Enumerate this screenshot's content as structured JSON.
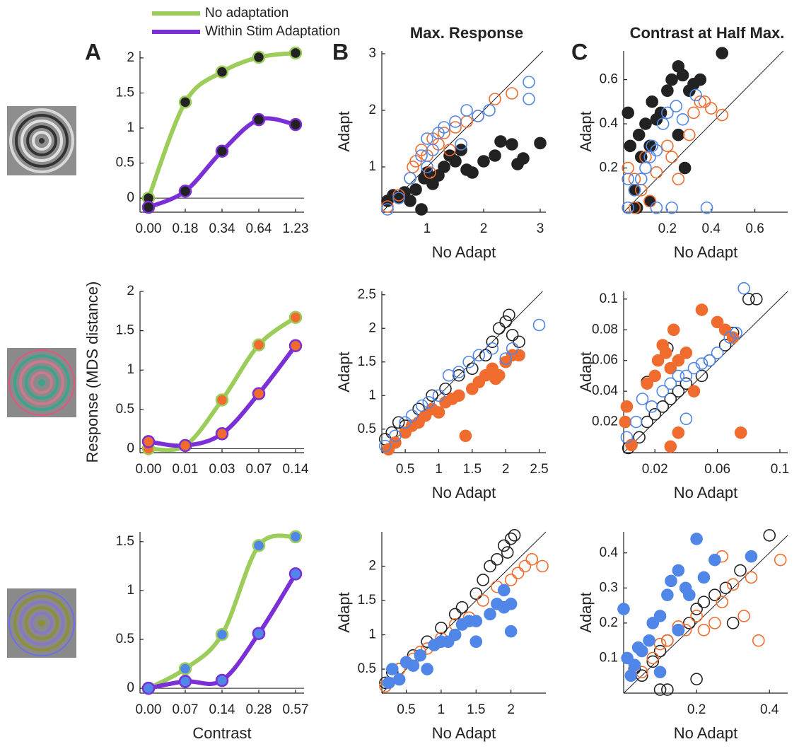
{
  "figure": {
    "panel_labels": [
      "A",
      "B",
      "C"
    ],
    "column_titles": [
      "Max. Response",
      "Contrast at Half Max."
    ]
  },
  "chart_data": [
    {
      "type": "line",
      "categories": [
        "0.00",
        "0.18",
        "0.34",
        "0.64",
        "1.23"
      ],
      "ylim": [
        -0.2,
        2.1
      ],
      "yticks": [
        0,
        0.5,
        1,
        1.5,
        2
      ],
      "marker_color": "#222222",
      "series": [
        {
          "name": "No adaptation",
          "color": "#9ccc5a",
          "values": [
            0,
            1.37,
            1.8,
            2.01,
            2.07
          ]
        },
        {
          "name": "Within Stim Adaptation",
          "color": "#7b2fd6",
          "values": [
            -0.13,
            0.1,
            0.67,
            1.12,
            1.05
          ]
        }
      ]
    },
    {
      "type": "line",
      "categories": [
        "0.00",
        "0.01",
        "0.03",
        "0.07",
        "0.14"
      ],
      "ylim": [
        -0.05,
        2
      ],
      "yticks": [
        0,
        0.5,
        1,
        1.5,
        2
      ],
      "marker_color": "#ef6c2e",
      "ylabel": "Response (MDS distance)",
      "series": [
        {
          "color": "#9ccc5a",
          "values": [
            0,
            0.04,
            0.62,
            1.32,
            1.67
          ]
        },
        {
          "color": "#7b2fd6",
          "values": [
            0.09,
            0.04,
            0.19,
            0.7,
            1.31
          ]
        }
      ]
    },
    {
      "type": "line",
      "categories": [
        "0.00",
        "0.07",
        "0.14",
        "0.28",
        "0.57"
      ],
      "ylim": [
        -0.05,
        1.6
      ],
      "yticks": [
        0,
        0.5,
        1,
        1.5
      ],
      "marker_color": "#4f86e8",
      "xlabel": "Contrast",
      "series": [
        {
          "color": "#9ccc5a",
          "values": [
            0,
            0.2,
            0.55,
            1.46,
            1.55
          ]
        },
        {
          "color": "#7b2fd6",
          "values": [
            0,
            0.07,
            0.08,
            0.56,
            1.17
          ]
        }
      ]
    },
    {
      "type": "scatter",
      "xlabel": "No Adapt",
      "ylabel": "Adapt",
      "xlim": [
        0.2,
        3.1
      ],
      "ylim": [
        0.2,
        3.05
      ],
      "xticks": [
        1,
        2,
        3
      ],
      "yticks": [
        1,
        2,
        3
      ],
      "identity_line": true,
      "series": [
        {
          "color": "#222222",
          "filled": true,
          "x": [
            0.3,
            0.4,
            0.5,
            0.6,
            0.7,
            0.8,
            0.9,
            0.95,
            1.0,
            1.1,
            1.2,
            1.3,
            1.4,
            1.5,
            1.6,
            1.7,
            1.8,
            2.0,
            2.2,
            2.3,
            2.5,
            2.6,
            2.7,
            3.0
          ],
          "values": [
            0.4,
            0.5,
            0.45,
            0.55,
            0.4,
            0.6,
            0.25,
            0.8,
            0.9,
            0.7,
            0.85,
            1.0,
            1.2,
            1.1,
            1.3,
            0.95,
            0.9,
            1.1,
            1.2,
            1.45,
            1.4,
            1.05,
            1.15,
            1.42
          ]
        },
        {
          "color": "#ef6c2e",
          "filled": false,
          "x": [
            0.3,
            0.5,
            0.7,
            0.8,
            0.9,
            1.0,
            1.1,
            1.2,
            1.3,
            1.4,
            1.5,
            1.7,
            1.9,
            2.2,
            2.5,
            0.75,
            1.05
          ],
          "values": [
            0.3,
            0.5,
            0.8,
            1.1,
            1.3,
            1.2,
            1.5,
            1.4,
            1.6,
            1.3,
            1.7,
            1.8,
            1.9,
            2.2,
            2.3,
            1.0,
            0.9
          ]
        },
        {
          "color": "#4f86e8",
          "filled": false,
          "x": [
            0.3,
            0.5,
            0.7,
            0.9,
            1.0,
            1.1,
            1.2,
            1.3,
            1.5,
            1.6,
            1.7,
            1.9,
            2.1,
            2.8,
            2.8,
            1.0
          ],
          "values": [
            0.25,
            0.45,
            0.8,
            1.2,
            1.5,
            1.3,
            1.6,
            1.7,
            1.8,
            1.4,
            2.0,
            1.9,
            2.0,
            2.5,
            2.2,
            1.0
          ]
        }
      ]
    },
    {
      "type": "scatter",
      "xlabel": "No Adapt",
      "ylabel": "Adapt",
      "xlim": [
        0,
        0.75
      ],
      "ylim": [
        0,
        0.73
      ],
      "xticks": [
        0.2,
        0.4,
        0.6
      ],
      "yticks": [
        0.2,
        0.4,
        0.6
      ],
      "identity_line": true,
      "series": [
        {
          "color": "#222222",
          "filled": true,
          "x": [
            0.02,
            0.03,
            0.05,
            0.07,
            0.08,
            0.1,
            0.12,
            0.13,
            0.15,
            0.17,
            0.2,
            0.22,
            0.25,
            0.27,
            0.3,
            0.32,
            0.35,
            0.45,
            0.12,
            0.28,
            0.25,
            0.06
          ],
          "values": [
            0.45,
            0.3,
            0.1,
            0.35,
            0.25,
            0.4,
            0.3,
            0.5,
            0.42,
            0.45,
            0.55,
            0.6,
            0.66,
            0.62,
            0.55,
            0.58,
            0.6,
            0.72,
            0.05,
            0.2,
            0.35,
            0.02
          ]
        },
        {
          "color": "#ef6c2e",
          "filled": false,
          "x": [
            0.02,
            0.05,
            0.08,
            0.1,
            0.12,
            0.15,
            0.2,
            0.22,
            0.25,
            0.3,
            0.32,
            0.37,
            0.4,
            0.45,
            0.35,
            0.05
          ],
          "values": [
            0.2,
            0.15,
            0.1,
            0.25,
            0.05,
            0.18,
            0.3,
            0.25,
            0.15,
            0.35,
            0.45,
            0.5,
            0.47,
            0.44,
            0.5,
            0.02
          ]
        },
        {
          "color": "#4f86e8",
          "filled": false,
          "x": [
            0.02,
            0.05,
            0.08,
            0.1,
            0.12,
            0.13,
            0.15,
            0.18,
            0.2,
            0.24,
            0.27,
            0.33,
            0.38,
            0.15,
            0.02,
            0.22
          ],
          "values": [
            0.02,
            0.1,
            0.15,
            0.2,
            0.25,
            0.3,
            0.28,
            0.4,
            0.45,
            0.48,
            0.42,
            0.53,
            0.02,
            0.02,
            0.15,
            0.02
          ]
        }
      ]
    },
    {
      "type": "scatter",
      "xlabel": "No Adapt",
      "ylabel": "Adapt",
      "xlim": [
        0.15,
        2.6
      ],
      "ylim": [
        0.15,
        2.55
      ],
      "xticks": [
        0.5,
        1,
        1.5,
        2,
        2.5
      ],
      "yticks": [
        0.5,
        1,
        1.5,
        2,
        2.5
      ],
      "identity_line": true,
      "series": [
        {
          "color": "#222222",
          "filled": false,
          "x": [
            0.2,
            0.3,
            0.4,
            0.5,
            0.7,
            0.9,
            1.1,
            1.3,
            1.5,
            1.7,
            1.8,
            1.9,
            2.0,
            2.05,
            2.1,
            2.2
          ],
          "values": [
            0.35,
            0.45,
            0.6,
            0.55,
            0.8,
            1.0,
            1.1,
            1.3,
            1.4,
            1.6,
            1.8,
            2.0,
            2.1,
            2.2,
            1.9,
            1.8
          ]
        },
        {
          "color": "#ef6c2e",
          "filled": true,
          "x": [
            0.25,
            0.35,
            0.5,
            0.6,
            0.7,
            0.8,
            0.9,
            1.0,
            1.1,
            1.2,
            1.3,
            1.4,
            1.5,
            1.6,
            1.7,
            1.8,
            1.9,
            2.0,
            2.1,
            2.2,
            1.85
          ],
          "values": [
            0.2,
            0.3,
            0.45,
            0.55,
            0.6,
            0.7,
            0.8,
            0.75,
            0.9,
            0.95,
            1.0,
            0.4,
            1.1,
            1.2,
            1.3,
            1.4,
            1.3,
            1.5,
            1.6,
            1.6,
            1.25
          ]
        },
        {
          "color": "#4f86e8",
          "filled": false,
          "x": [
            0.2,
            0.35,
            0.5,
            0.6,
            0.75,
            0.85,
            1.0,
            1.15,
            1.3,
            1.45,
            1.6,
            1.8,
            2.0,
            2.1,
            2.5
          ],
          "values": [
            0.25,
            0.4,
            0.6,
            0.7,
            0.85,
            0.9,
            1.0,
            1.3,
            1.35,
            1.5,
            1.6,
            1.7,
            1.55,
            1.7,
            2.05
          ]
        }
      ]
    },
    {
      "type": "scatter",
      "xlabel": "No Adapt",
      "ylabel": "Adapt",
      "xlim": [
        0,
        0.105
      ],
      "ylim": [
        0,
        0.105
      ],
      "xticks": [
        0.02,
        0.06,
        0.1
      ],
      "yticks": [
        0.02,
        0.04,
        0.06,
        0.08,
        0.1
      ],
      "identity_line": true,
      "series": [
        {
          "color": "#222222",
          "filled": false,
          "x": [
            0.003,
            0.01,
            0.015,
            0.02,
            0.025,
            0.03,
            0.035,
            0.04,
            0.05,
            0.055,
            0.065,
            0.07,
            0.08,
            0.085,
            0.028,
            0.015
          ],
          "values": [
            0.003,
            0.01,
            0.02,
            0.025,
            0.03,
            0.035,
            0.04,
            0.045,
            0.05,
            0.06,
            0.07,
            0.078,
            0.1,
            0.1,
            0.068,
            0.046
          ]
        },
        {
          "color": "#ef6c2e",
          "filled": true,
          "x": [
            0.001,
            0.002,
            0.005,
            0.015,
            0.02,
            0.022,
            0.025,
            0.027,
            0.03,
            0.032,
            0.035,
            0.04,
            0.045,
            0.05,
            0.06,
            0.065,
            0.07,
            0.075,
            0.035,
            0.03
          ],
          "values": [
            0.02,
            0.03,
            0.005,
            0.045,
            0.05,
            0.06,
            0.07,
            0.065,
            0.055,
            0.08,
            0.06,
            0.065,
            0.04,
            0.093,
            0.085,
            0.08,
            0.075,
            0.013,
            0.013,
            0.004
          ]
        },
        {
          "color": "#4f86e8",
          "filled": false,
          "x": [
            0.002,
            0.008,
            0.012,
            0.018,
            0.025,
            0.03,
            0.035,
            0.04,
            0.045,
            0.05,
            0.055,
            0.06,
            0.068,
            0.072,
            0.077,
            0.04
          ],
          "values": [
            0.01,
            0.02,
            0.035,
            0.03,
            0.04,
            0.045,
            0.05,
            0.05,
            0.055,
            0.058,
            0.06,
            0.065,
            0.075,
            0.078,
            0.107,
            0.022
          ]
        }
      ]
    },
    {
      "type": "scatter",
      "xlabel": "No Adapt",
      "ylabel": "Adapt",
      "xlim": [
        0.15,
        2.5
      ],
      "ylim": [
        0.15,
        2.5
      ],
      "xticks": [
        0.5,
        1,
        1.5,
        2
      ],
      "yticks": [
        0.5,
        1,
        1.5,
        2
      ],
      "identity_line": true,
      "series": [
        {
          "color": "#222222",
          "filled": false,
          "x": [
            0.2,
            0.3,
            0.4,
            0.6,
            0.8,
            1.0,
            1.2,
            1.3,
            1.5,
            1.6,
            1.7,
            1.8,
            1.9,
            2.0,
            2.05,
            1.95
          ],
          "values": [
            0.3,
            0.45,
            0.5,
            0.7,
            0.9,
            1.1,
            1.3,
            1.4,
            1.6,
            1.8,
            2.0,
            2.1,
            2.3,
            2.4,
            2.45,
            2.2
          ]
        },
        {
          "color": "#ef6c2e",
          "filled": false,
          "x": [
            0.2,
            0.4,
            0.6,
            0.7,
            0.8,
            1.0,
            1.2,
            1.4,
            1.6,
            1.8,
            2.0,
            2.1,
            2.2,
            2.3,
            2.45
          ],
          "values": [
            0.25,
            0.5,
            0.65,
            0.75,
            0.8,
            0.95,
            1.15,
            1.25,
            1.5,
            1.7,
            1.8,
            1.9,
            2.0,
            2.1,
            2.0
          ]
        },
        {
          "color": "#4f86e8",
          "filled": true,
          "x": [
            0.25,
            0.3,
            0.4,
            0.5,
            0.6,
            0.7,
            0.8,
            0.9,
            1.0,
            1.1,
            1.2,
            1.3,
            1.4,
            1.5,
            1.7,
            1.8,
            1.9,
            2.0,
            2.0,
            1.9,
            1.5
          ],
          "values": [
            0.3,
            0.5,
            0.35,
            0.6,
            0.55,
            0.7,
            0.5,
            0.85,
            0.9,
            0.9,
            1.0,
            1.15,
            1.2,
            1.2,
            1.3,
            1.45,
            1.4,
            1.45,
            1.05,
            1.65,
            0.9
          ]
        }
      ]
    },
    {
      "type": "scatter",
      "xlabel": "No Adapt",
      "ylabel": "Adapt",
      "xlim": [
        0,
        0.45
      ],
      "ylim": [
        0,
        0.46
      ],
      "xticks": [
        0.2,
        0.4
      ],
      "yticks": [
        0.1,
        0.2,
        0.3,
        0.4
      ],
      "identity_line": true,
      "series": [
        {
          "color": "#222222",
          "filled": false,
          "x": [
            0.03,
            0.05,
            0.08,
            0.1,
            0.12,
            0.15,
            0.18,
            0.2,
            0.22,
            0.25,
            0.28,
            0.32,
            0.4,
            0.3,
            0.2,
            0.1,
            0.12
          ],
          "values": [
            0.07,
            0.05,
            0.09,
            0.12,
            0.15,
            0.18,
            0.2,
            0.24,
            0.26,
            0.28,
            0.3,
            0.35,
            0.45,
            0.2,
            0.04,
            0.01,
            0.01
          ]
        },
        {
          "color": "#ef6c2e",
          "filled": false,
          "x": [
            0.05,
            0.08,
            0.1,
            0.12,
            0.15,
            0.17,
            0.2,
            0.22,
            0.25,
            0.27,
            0.3,
            0.33,
            0.35,
            0.37,
            0.43,
            0.27
          ],
          "values": [
            0.06,
            0.1,
            0.14,
            0.15,
            0.19,
            0.18,
            0.22,
            0.18,
            0.2,
            0.26,
            0.31,
            0.22,
            0.33,
            0.15,
            0.38,
            0.39
          ]
        },
        {
          "color": "#4f86e8",
          "filled": true,
          "x": [
            0.0,
            0.01,
            0.02,
            0.03,
            0.04,
            0.05,
            0.07,
            0.08,
            0.1,
            0.12,
            0.13,
            0.15,
            0.17,
            0.18,
            0.2,
            0.22,
            0.25,
            0.35,
            0.1,
            0.15
          ],
          "values": [
            0.24,
            0.1,
            0.05,
            0.08,
            0.13,
            0.12,
            0.15,
            0.2,
            0.22,
            0.28,
            0.32,
            0.35,
            0.3,
            0.28,
            0.44,
            0.33,
            0.38,
            0.39,
            0.06,
            0.18
          ]
        }
      ]
    }
  ]
}
